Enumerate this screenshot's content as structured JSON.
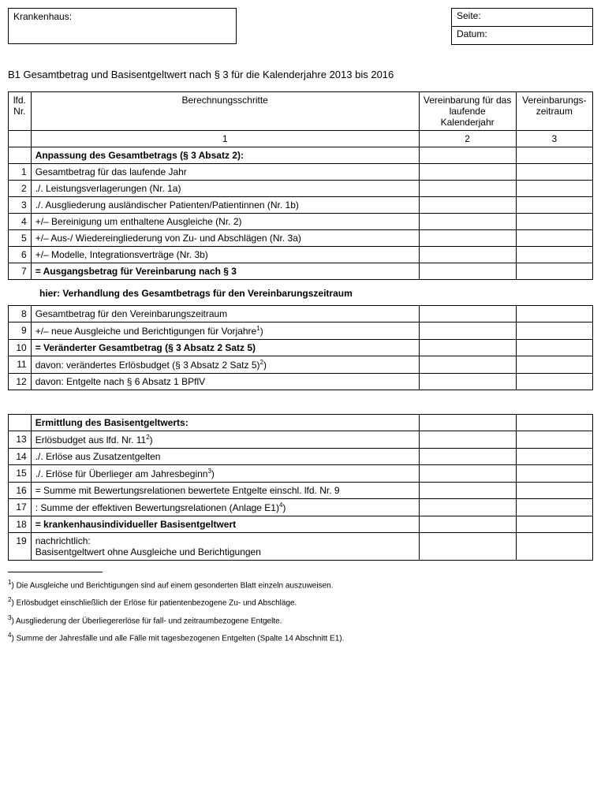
{
  "header": {
    "krankenhaus_label": "Krankenhaus:",
    "seite_label": "Seite:",
    "datum_label": "Datum:"
  },
  "title": "B1  Gesamtbetrag und Basisentgeltwert nach § 3 für die Kalenderjahre 2013 bis 2016",
  "table_head": {
    "nr": "lfd. Nr.",
    "step": "Berechnungsschritte",
    "col2": "Vereinbarung für das laufende Kalenderjahr",
    "col3": "Vereinbarungs­zeitraum",
    "idx1": "1",
    "idx2": "2",
    "idx3": "3"
  },
  "section1": {
    "heading": "Anpassung des Gesamtbetrags (§ 3 Absatz 2):",
    "rows": [
      {
        "nr": "1",
        "text": "Gesamtbetrag für das laufende Jahr"
      },
      {
        "nr": "2",
        "text": "./. Leistungsverlagerungen (Nr. 1a)"
      },
      {
        "nr": "3",
        "text": "./. Ausgliederung ausländischer Patienten/Patientinnen (Nr. 1b)"
      },
      {
        "nr": "4",
        "text": "+/– Bereinigung um enthaltene Ausgleiche (Nr. 2)"
      },
      {
        "nr": "5",
        "text": "+/– Aus-/ Wiedereingliederung von Zu- und Abschlägen (Nr. 3a)"
      },
      {
        "nr": "6",
        "text": "+/– Modelle, Integrationsverträge (Nr. 3b)"
      }
    ],
    "row7": {
      "nr": "7",
      "text": "= Ausgangsbetrag für Vereinbarung nach § 3"
    }
  },
  "subheading": "hier: Verhandlung des Gesamtbetrags für den Vereinbarungszeitraum",
  "section2": {
    "rows_a": [
      {
        "nr": "8",
        "text": "Gesamtbetrag für den Vereinbarungszeitraum"
      },
      {
        "nr": "9",
        "text": "+/– neue Ausgleiche und Berichtigungen für Vorjahre",
        "sup": "1"
      }
    ],
    "row10": {
      "nr": "10",
      "text": "= Veränderter Gesamtbetrag (§ 3 Absatz 2 Satz 5)"
    },
    "rows_b": [
      {
        "nr": "11",
        "text": "davon: verändertes Erlösbudget (§ 3 Absatz 2 Satz 5)",
        "sup": "2"
      },
      {
        "nr": "12",
        "text": "davon: Entgelte nach § 6 Absatz 1 BPflV"
      }
    ]
  },
  "section3": {
    "heading": "Ermittlung des Basisentgeltwerts:",
    "rows_a": [
      {
        "nr": "13",
        "text": "Erlösbudget aus lfd. Nr. 11",
        "sup": "2"
      },
      {
        "nr": "14",
        "text": "./. Erlöse aus Zusatzentgelten"
      },
      {
        "nr": "15",
        "text": "./. Erlöse für Überlieger am Jahresbeginn",
        "sup": "3"
      }
    ],
    "row16": {
      "nr": "16",
      "text": "= Summe mit Bewertungsrelationen bewertete Entgelte einschl. lfd. Nr. 9"
    },
    "row17": {
      "nr": "17",
      "text": ": Summe der effektiven Bewertungsrelationen (Anlage E1)",
      "sup": "4"
    },
    "row18": {
      "nr": "18",
      "text": "= krankenhausindividueller Basisentgeltwert"
    },
    "row19": {
      "nr": "19",
      "text_a": "nachrichtlich:",
      "text_b": "Basisentgeltwert ohne Ausgleiche und Berichtigungen"
    }
  },
  "footnotes": [
    {
      "idx": "1",
      "text": "Die Ausgleiche und Berichtigungen sind auf einem gesonderten Blatt einzeln auszuweisen."
    },
    {
      "idx": "2",
      "text": "Erlösbudget einschließlich der Erlöse für patientenbezogene Zu- und Abschläge."
    },
    {
      "idx": "3",
      "text": "Ausgliederung der Überliegererlöse für fall- und zeitraumbezogene Entgelte."
    },
    {
      "idx": "4",
      "text": "Summe der Jahresfälle und alle Fälle mit tagesbezogenen Entgelten (Spalte 14 Abschnitt E1)."
    }
  ]
}
